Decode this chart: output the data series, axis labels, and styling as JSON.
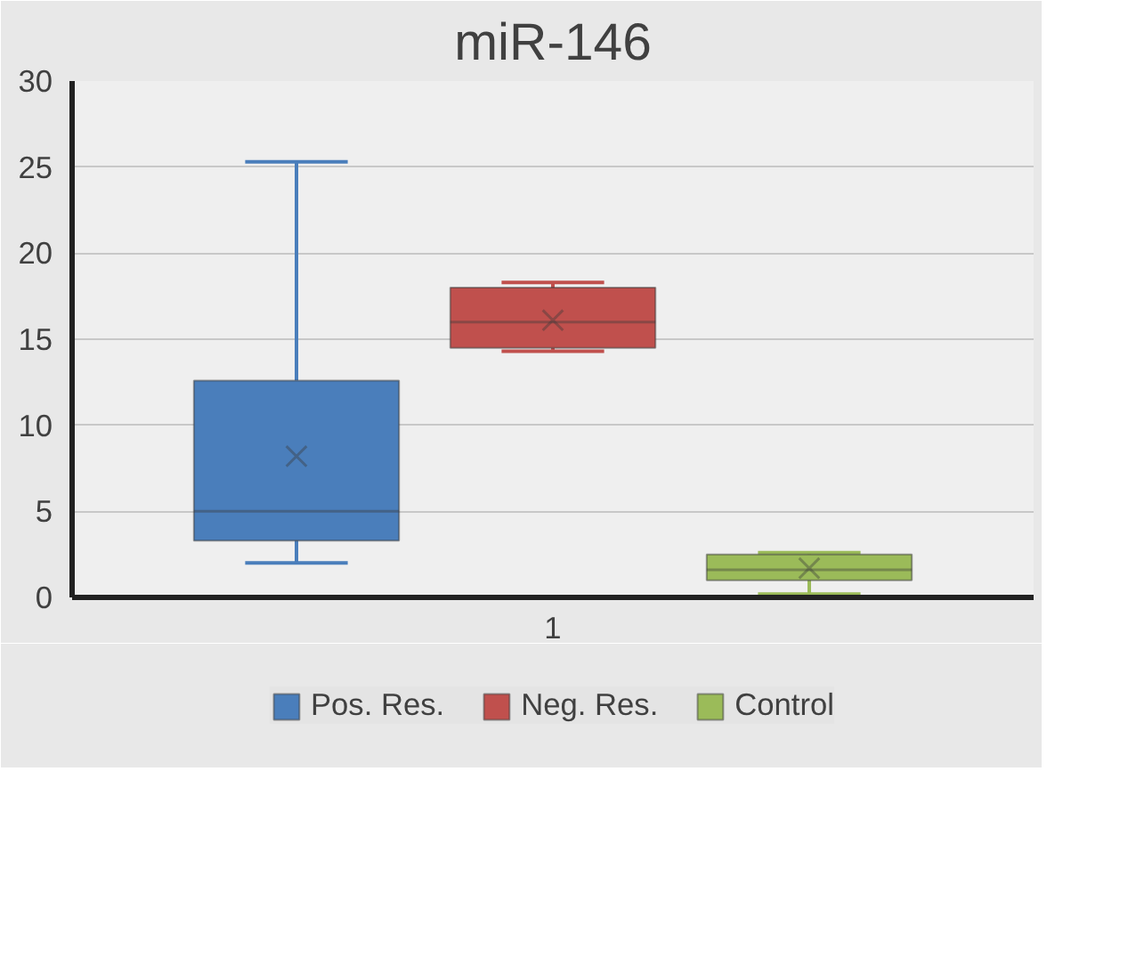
{
  "chart_data": {
    "type": "box",
    "title": "miR-146",
    "categories": [
      "1"
    ],
    "series": [
      {
        "name": "Pos. Res.",
        "color": "#4a7ebb",
        "boxes": [
          {
            "low": 2,
            "q1": 3.3,
            "median": 5,
            "q3": 12.6,
            "high": 25.3,
            "mean": 8.2
          }
        ]
      },
      {
        "name": "Neg. Res.",
        "color": "#c0504d",
        "boxes": [
          {
            "low": 14.3,
            "q1": 14.5,
            "median": 16,
            "q3": 18,
            "high": 18.3,
            "mean": 16.1
          }
        ]
      },
      {
        "name": "Control",
        "color": "#9bbb59",
        "boxes": [
          {
            "low": 0.2,
            "q1": 1.0,
            "median": 1.6,
            "q3": 2.5,
            "high": 2.6,
            "mean": 1.7
          }
        ]
      }
    ],
    "ylim": [
      0,
      30
    ],
    "yticks": [
      0,
      5,
      10,
      15,
      20,
      25,
      30
    ],
    "grid": "y",
    "legend": "bottom"
  }
}
